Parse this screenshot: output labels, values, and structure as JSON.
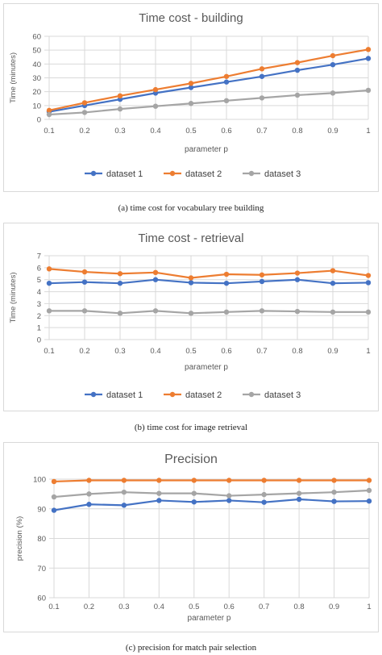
{
  "chart_data": [
    {
      "type": "line",
      "title": "Time cost  - building",
      "xlabel": "parameter p",
      "ylabel": "Time (minutes)",
      "x": [
        0.1,
        0.2,
        0.3,
        0.4,
        0.5,
        0.6,
        0.7,
        0.8,
        0.9,
        1
      ],
      "x_tick_labels": [
        "0.1",
        "0.2",
        "0.3",
        "0.4",
        "0.5",
        "0.6",
        "0.7",
        "0.8",
        "0.9",
        "1"
      ],
      "ylim": [
        0,
        60
      ],
      "y_ticks": [
        0,
        10,
        20,
        30,
        40,
        50,
        60
      ],
      "grid": true,
      "legend_position": "bottom",
      "series": [
        {
          "name": "dataset 1",
          "color": "#4472c4",
          "values": [
            5.5,
            10,
            14.5,
            19,
            23,
            27,
            31,
            35.5,
            39.5,
            44
          ]
        },
        {
          "name": "dataset 2",
          "color": "#ed7d31",
          "values": [
            6.5,
            12,
            17,
            21.5,
            26,
            31,
            36.5,
            41,
            46,
            50.5
          ]
        },
        {
          "name": "dataset 3",
          "color": "#a5a5a5",
          "values": [
            3.5,
            5,
            7.5,
            9.5,
            11.5,
            13.5,
            15.5,
            17.5,
            19,
            21
          ]
        }
      ],
      "caption": "(a) time cost for vocabulary tree building"
    },
    {
      "type": "line",
      "title": "Time cost  - retrieval",
      "xlabel": "parameter p",
      "ylabel": "Time (minutes)",
      "x": [
        0.1,
        0.2,
        0.3,
        0.4,
        0.5,
        0.6,
        0.7,
        0.8,
        0.9,
        1
      ],
      "x_tick_labels": [
        "0.1",
        "0.2",
        "0.3",
        "0.4",
        "0.5",
        "0.6",
        "0.7",
        "0.8",
        "0.9",
        "1"
      ],
      "ylim": [
        0,
        7
      ],
      "y_ticks": [
        0,
        1,
        2,
        3,
        4,
        5,
        6,
        7
      ],
      "grid": true,
      "legend_position": "bottom",
      "series": [
        {
          "name": "dataset 1",
          "color": "#4472c4",
          "values": [
            4.7,
            4.8,
            4.7,
            5.0,
            4.75,
            4.7,
            4.85,
            5.0,
            4.7,
            4.75
          ]
        },
        {
          "name": "dataset 2",
          "color": "#ed7d31",
          "values": [
            5.9,
            5.65,
            5.5,
            5.6,
            5.15,
            5.45,
            5.4,
            5.55,
            5.75,
            5.35
          ]
        },
        {
          "name": "dataset 3",
          "color": "#a5a5a5",
          "values": [
            2.4,
            2.4,
            2.2,
            2.4,
            2.2,
            2.3,
            2.4,
            2.35,
            2.3,
            2.3
          ]
        }
      ],
      "caption": "(b) time cost for image retrieval"
    },
    {
      "type": "line",
      "title": "Precision",
      "xlabel": "parameter p",
      "ylabel": "precision (%)",
      "x": [
        0.1,
        0.2,
        0.3,
        0.4,
        0.5,
        0.6,
        0.7,
        0.8,
        0.9,
        1
      ],
      "x_tick_labels": [
        "0.1",
        "0.2",
        "0.3",
        "0.4",
        "0.5",
        "0.6",
        "0.7",
        "0.8",
        "0.9",
        "1"
      ],
      "ylim": [
        60,
        100
      ],
      "y_ticks": [
        60,
        70,
        80,
        90,
        100
      ],
      "grid": true,
      "legend_position": "bottom",
      "series": [
        {
          "name": "dataset 1",
          "color": "#4472c4",
          "values": [
            89.5,
            91.5,
            91.2,
            92.8,
            92.3,
            92.8,
            92.2,
            93.2,
            92.5,
            92.6
          ]
        },
        {
          "name": "dataset 2",
          "color": "#ed7d31",
          "values": [
            99.2,
            99.6,
            99.6,
            99.6,
            99.6,
            99.6,
            99.6,
            99.6,
            99.6,
            99.6
          ]
        },
        {
          "name": "dataset 3",
          "color": "#a5a5a5",
          "values": [
            94,
            95,
            95.6,
            95.2,
            95.2,
            94.4,
            94.8,
            95.2,
            95.6,
            96.2
          ]
        }
      ],
      "caption": "(c) precision for match pair selection"
    }
  ]
}
